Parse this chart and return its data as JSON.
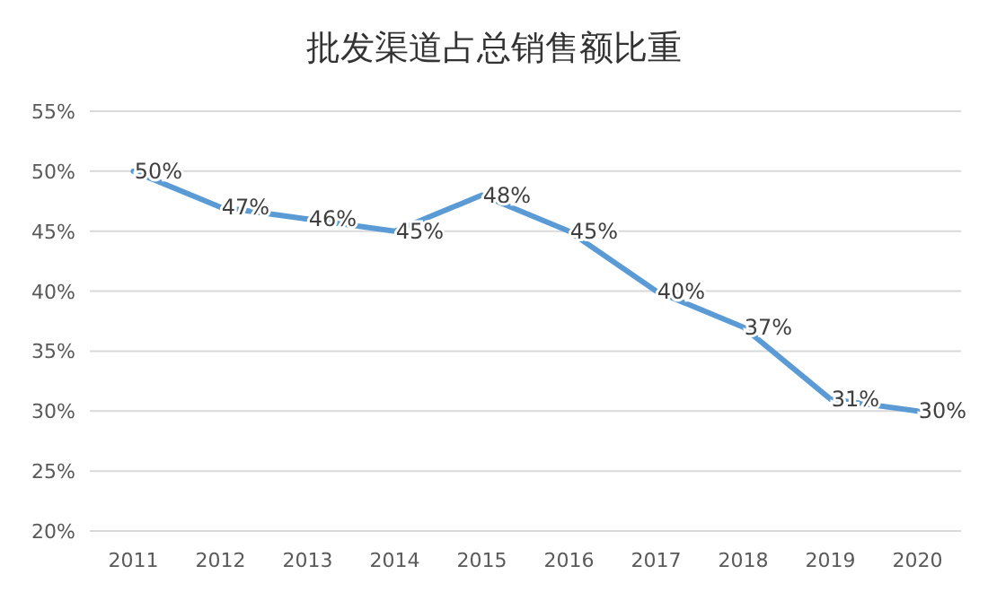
{
  "chart_data": {
    "type": "line",
    "title": "批发渠道占总销售额比重",
    "categories": [
      "2011",
      "2012",
      "2013",
      "2014",
      "2015",
      "2016",
      "2017",
      "2018",
      "2019",
      "2020"
    ],
    "series": [
      {
        "color": "#5b9bd5",
        "values": [
          50,
          47,
          46,
          45,
          48,
          45,
          40,
          37,
          31,
          30
        ],
        "value_labels": [
          "50%",
          "47%",
          "46%",
          "45%",
          "48%",
          "45%",
          "40%",
          "37%",
          "31%",
          "30%"
        ]
      }
    ],
    "ylim": [
      20,
      55
    ],
    "yticks": [
      {
        "value": 20,
        "label": "20%"
      },
      {
        "value": 25,
        "label": "25%"
      },
      {
        "value": 30,
        "label": "30%"
      },
      {
        "value": 35,
        "label": "35%"
      },
      {
        "value": 40,
        "label": "40%"
      },
      {
        "value": 45,
        "label": "45%"
      },
      {
        "value": 50,
        "label": "50%"
      },
      {
        "value": 55,
        "label": "55%"
      }
    ],
    "grid": "y",
    "marker": "none",
    "line_style": "solid"
  }
}
